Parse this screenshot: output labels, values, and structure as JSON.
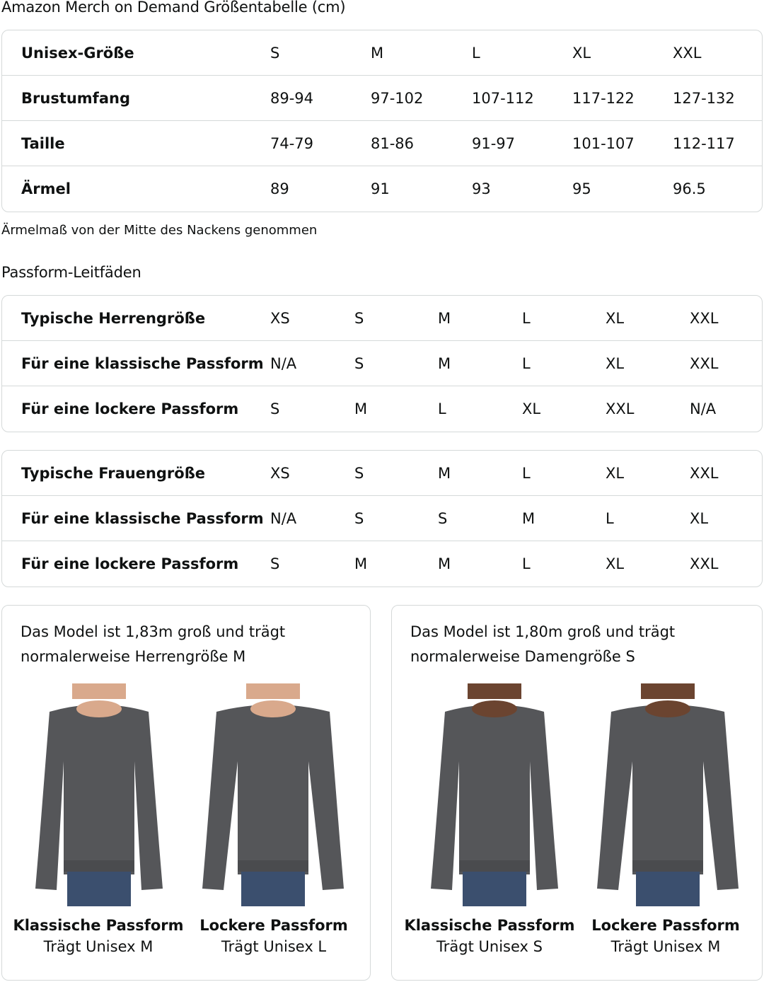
{
  "title": "Amazon Merch on Demand Größentabelle (cm)",
  "size_table": {
    "rows": [
      {
        "label": "Unisex-Größe",
        "values": [
          "S",
          "M",
          "L",
          "XL",
          "XXL"
        ]
      },
      {
        "label": "Brustumfang",
        "values": [
          "89-94",
          "97-102",
          "107-112",
          "117-122",
          "127-132"
        ]
      },
      {
        "label": "Taille",
        "values": [
          "74-79",
          "81-86",
          "91-97",
          "101-107",
          "112-117"
        ]
      },
      {
        "label": "Ärmel",
        "values": [
          "89",
          "91",
          "93",
          "95",
          "96.5"
        ]
      }
    ]
  },
  "note": "Ärmelmaß von der Mitte des Nackens genommen",
  "fit_heading": "Passform-Leitfäden",
  "men_table": {
    "rows": [
      {
        "label": "Typische Herrengröße",
        "values": [
          "XS",
          "S",
          "M",
          "L",
          "XL",
          "XXL"
        ]
      },
      {
        "label": "Für eine klassische Passform",
        "values": [
          "N/A",
          "S",
          "M",
          "L",
          "XL",
          "XXL"
        ]
      },
      {
        "label": "Für eine lockere Passform",
        "values": [
          "S",
          "M",
          "L",
          "XL",
          "XXL",
          "N/A"
        ]
      }
    ]
  },
  "women_table": {
    "rows": [
      {
        "label": "Typische Frauengröße",
        "values": [
          "XS",
          "S",
          "M",
          "L",
          "XL",
          "XXL"
        ]
      },
      {
        "label": "Für eine klassische Passform",
        "values": [
          "N/A",
          "S",
          "S",
          "M",
          "L",
          "XL"
        ]
      },
      {
        "label": "Für eine lockere Passform",
        "values": [
          "S",
          "M",
          "M",
          "L",
          "XL",
          "XXL"
        ]
      }
    ]
  },
  "cards": [
    {
      "desc_line1": "Das Model ist 1,83m groß und trägt",
      "desc_line2": "normalerweise Herrengröße M",
      "figures": [
        {
          "title": "Klassische Passform",
          "sub": "Trägt Unisex M"
        },
        {
          "title": "Lockere Passform",
          "sub": "Trägt Unisex L"
        }
      ]
    },
    {
      "desc_line1": "Das Model ist 1,80m groß und trägt",
      "desc_line2": "normalerweise Damengröße S",
      "figures": [
        {
          "title": "Klassische Passform",
          "sub": "Trägt Unisex S"
        },
        {
          "title": "Lockere Passform",
          "sub": "Trägt Unisex M"
        }
      ]
    }
  ],
  "colors": {
    "border": "#d5d9d9",
    "sweatshirt": "#555659",
    "jeans": "#3b4f6e",
    "skin_men": "#d9a98c",
    "skin_women": "#6b4430"
  }
}
